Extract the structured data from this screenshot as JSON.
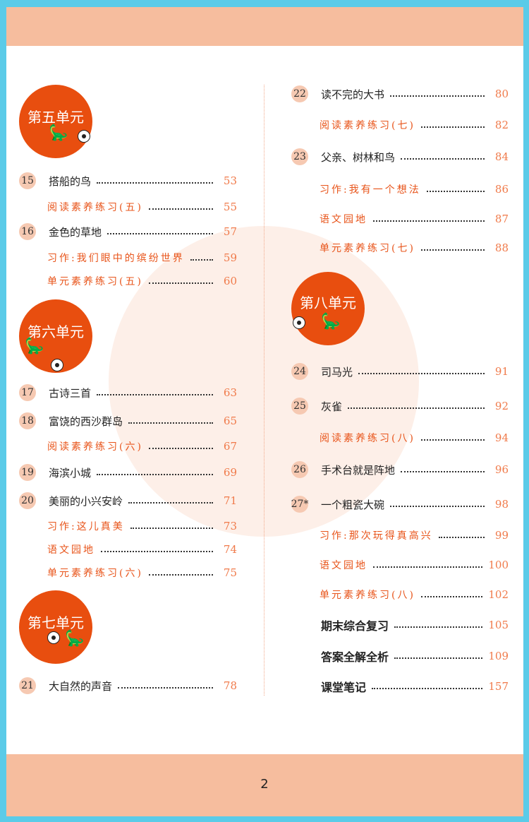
{
  "page_number": "2",
  "colors": {
    "accent": "#e84e0f",
    "band": "#f6bd9e",
    "frame": "#5bcbe8",
    "page_number_color": "#f07a4a"
  },
  "units": [
    {
      "label": "第五单元"
    },
    {
      "label": "第六单元"
    },
    {
      "label": "第七单元"
    },
    {
      "label": "第八单元"
    }
  ],
  "left_entries": [
    {
      "num": "15",
      "title": "搭船的鸟",
      "page": "53",
      "kind": "main"
    },
    {
      "title": "阅读素养练习(五)",
      "page": "55",
      "kind": "sub"
    },
    {
      "num": "16",
      "title": "金色的草地",
      "page": "57",
      "kind": "main"
    },
    {
      "title": "习作:我们眼中的缤纷世界",
      "page": "59",
      "kind": "sub"
    },
    {
      "title": "单元素养练习(五)",
      "page": "60",
      "kind": "sub"
    },
    {
      "num": "17",
      "title": "古诗三首",
      "page": "63",
      "kind": "main"
    },
    {
      "num": "18",
      "title": "富饶的西沙群岛",
      "page": "65",
      "kind": "main"
    },
    {
      "title": "阅读素养练习(六)",
      "page": "67",
      "kind": "sub"
    },
    {
      "num": "19",
      "title": "海滨小城",
      "page": "69",
      "kind": "main"
    },
    {
      "num": "20",
      "title": "美丽的小兴安岭",
      "page": "71",
      "kind": "main"
    },
    {
      "title": "习作:这儿真美",
      "page": "73",
      "kind": "sub"
    },
    {
      "title": "语文园地",
      "page": "74",
      "kind": "sub"
    },
    {
      "title": "单元素养练习(六)",
      "page": "75",
      "kind": "sub"
    },
    {
      "num": "21",
      "title": "大自然的声音",
      "page": "78",
      "kind": "main"
    }
  ],
  "right_entries": [
    {
      "num": "22",
      "title": "读不完的大书",
      "page": "80",
      "kind": "main"
    },
    {
      "title": "阅读素养练习(七)",
      "page": "82",
      "kind": "sub"
    },
    {
      "num": "23",
      "title": "父亲、树林和鸟",
      "page": "84",
      "kind": "main"
    },
    {
      "title": "习作:我有一个想法",
      "page": "86",
      "kind": "sub"
    },
    {
      "title": "语文园地",
      "page": "87",
      "kind": "sub"
    },
    {
      "title": "单元素养练习(七)",
      "page": "88",
      "kind": "sub"
    },
    {
      "num": "24",
      "title": "司马光",
      "page": "91",
      "kind": "main"
    },
    {
      "num": "25",
      "title": "灰雀",
      "page": "92",
      "kind": "main"
    },
    {
      "title": "阅读素养练习(八)",
      "page": "94",
      "kind": "sub"
    },
    {
      "num": "26",
      "title": "手术台就是阵地",
      "page": "96",
      "kind": "main"
    },
    {
      "num": "27*",
      "title": "一个粗瓷大碗",
      "page": "98",
      "kind": "main"
    },
    {
      "title": "习作:那次玩得真高兴",
      "page": "99",
      "kind": "sub"
    },
    {
      "title": "语文园地",
      "page": "100",
      "kind": "sub"
    },
    {
      "title": "单元素养练习(八)",
      "page": "102",
      "kind": "sub"
    },
    {
      "title": "期末综合复习",
      "page": "105",
      "kind": "bold"
    },
    {
      "title": "答案全解全析",
      "page": "109",
      "kind": "bold"
    },
    {
      "title": "课堂笔记",
      "page": "157",
      "kind": "bold"
    }
  ]
}
